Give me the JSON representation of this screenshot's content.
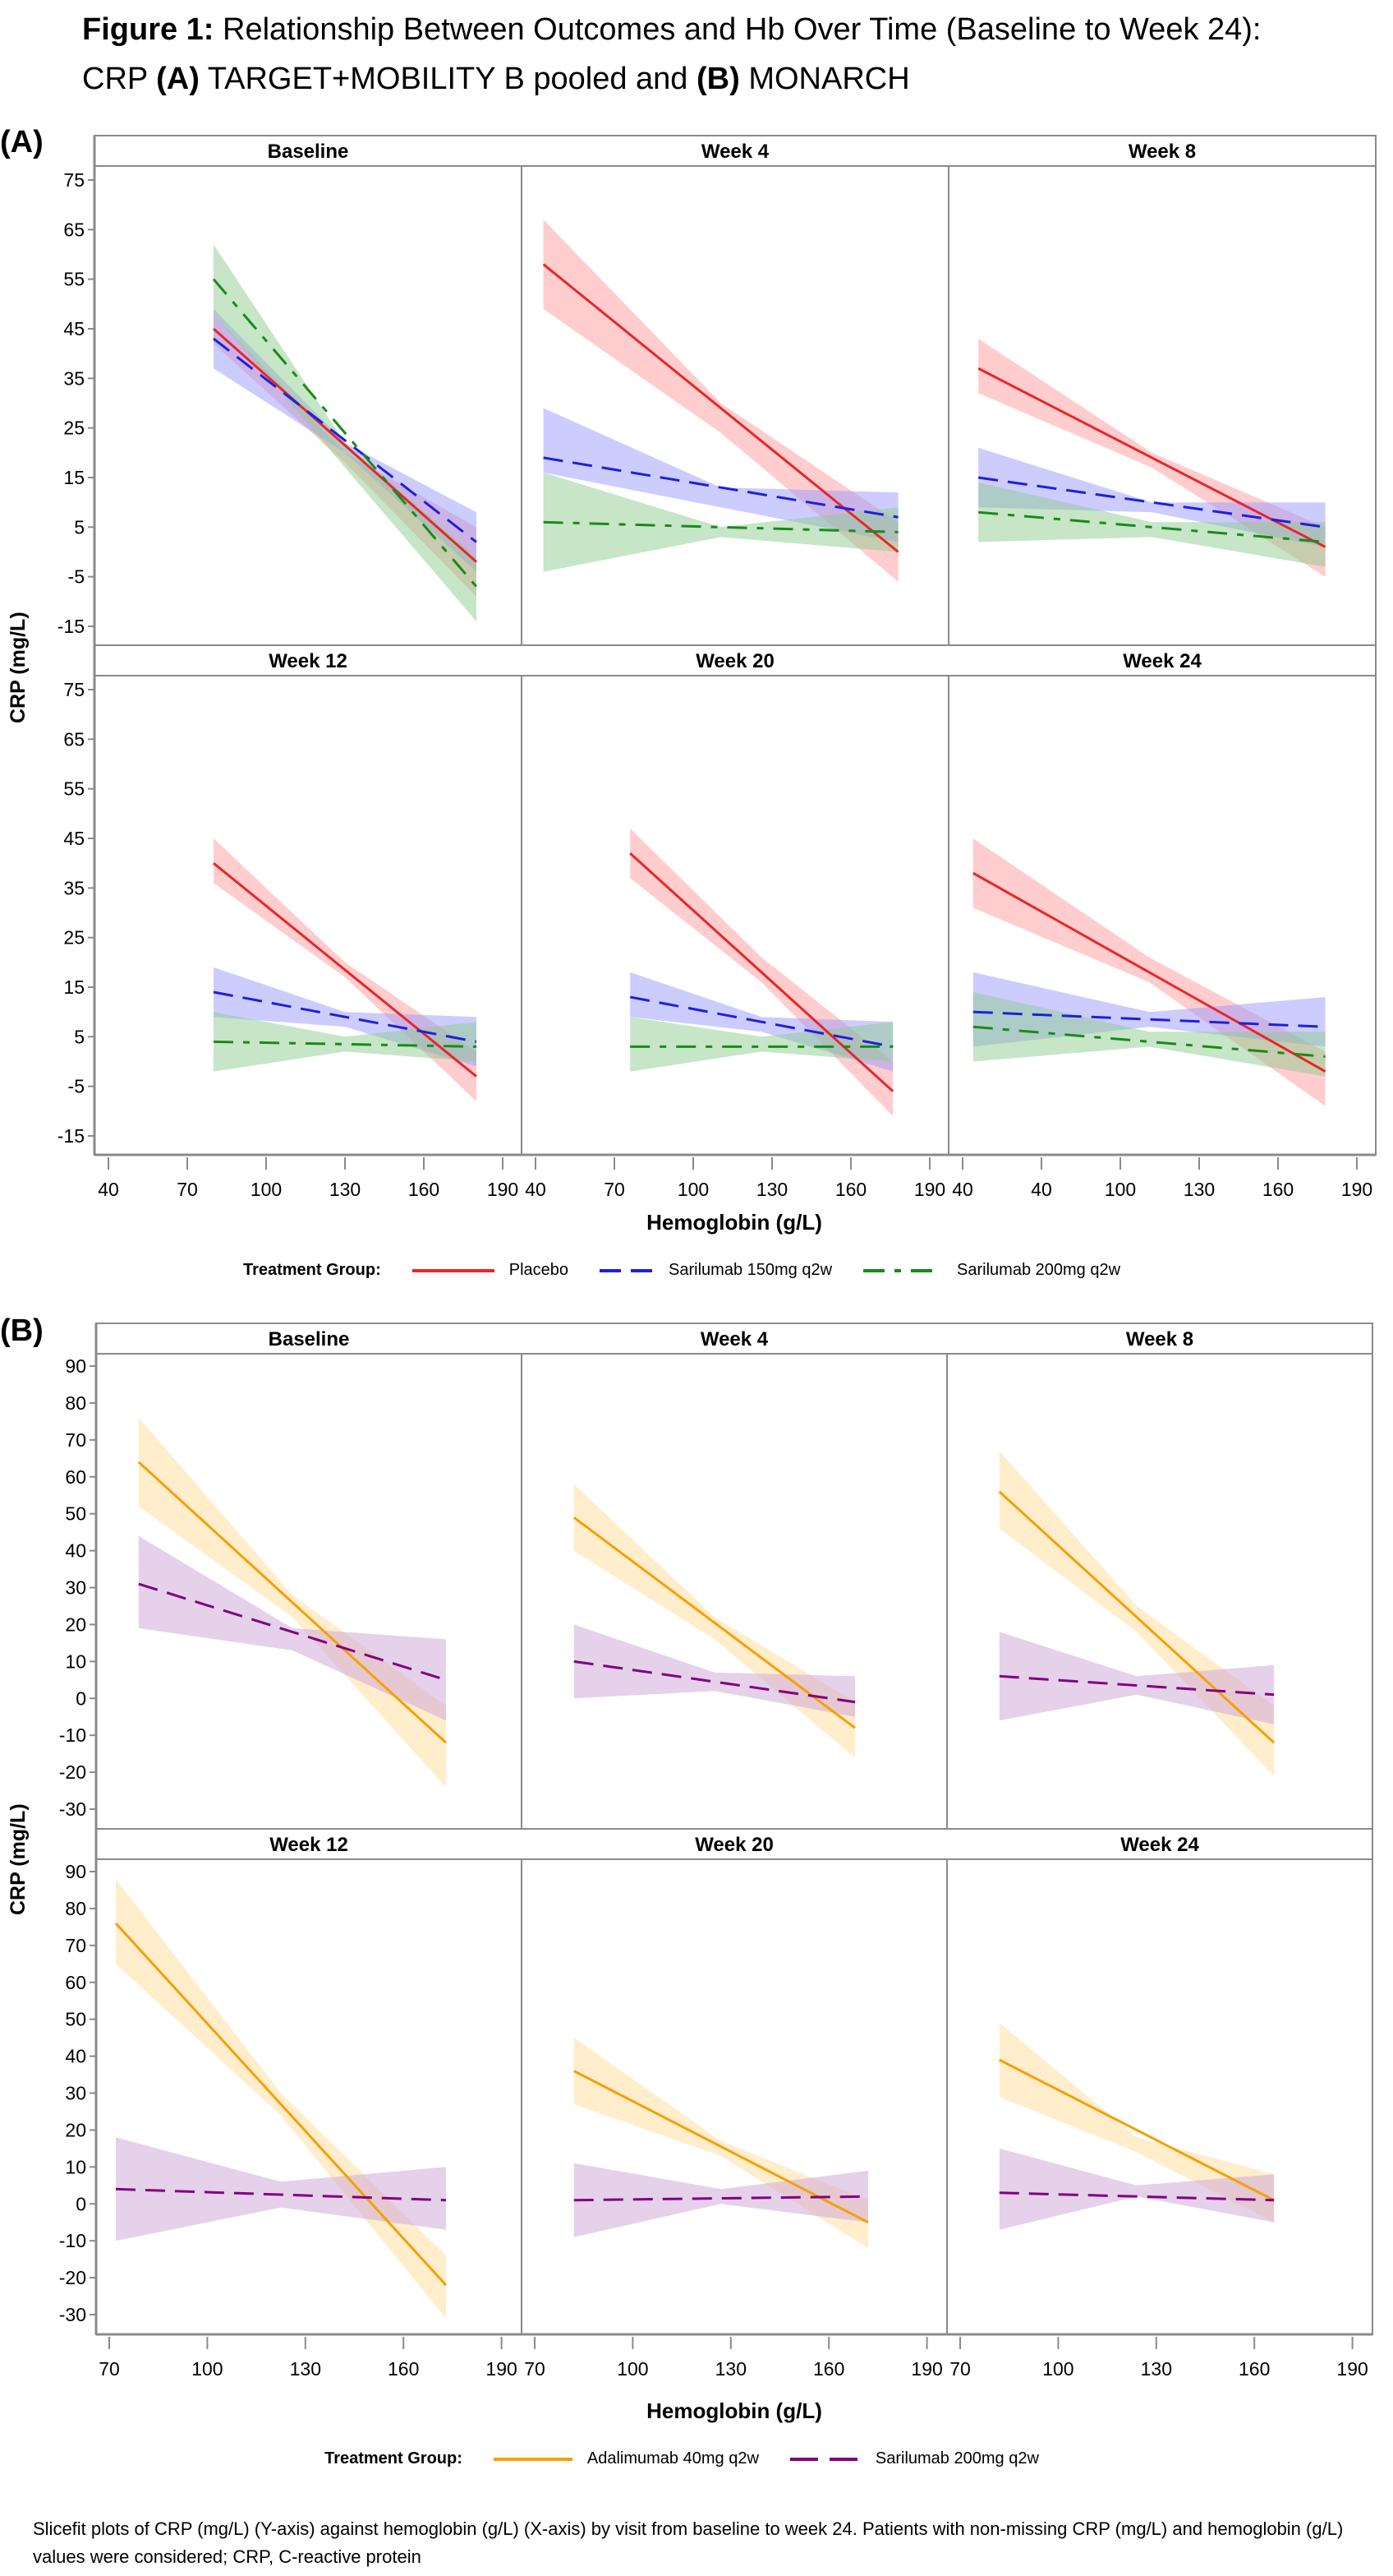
{
  "figure": {
    "title_prefix": "Figure 1:",
    "title_main": " Relationship Between Outcomes and Hb Over Time (Baseline to Week 24):",
    "title_line2_a": "CRP ",
    "title_label_a": "(A)",
    "title_line2_b": " TARGET+MOBILITY B pooled and ",
    "title_label_b": "(B)",
    "title_line2_c": " MONARCH",
    "footnote": "Slicefit plots of CRP (mg/L) (Y-axis) against hemoglobin (g/L) (X-axis) by visit from baseline to week 24. Patients with non-missing CRP (mg/L) and hemoglobin (g/L) values were considered; CRP, C-reactive protein"
  },
  "chart_data": [
    {
      "id": "A",
      "panel_label": "(A)",
      "type": "line",
      "subtype": "slicefit panel plot with confidence bands",
      "ylabel": "CRP (mg/L)",
      "xlabel": "Hemoglobin (g/L)",
      "yticks": [
        75,
        65,
        55,
        45,
        35,
        25,
        15,
        5,
        -5,
        -15
      ],
      "ylim": [
        -15,
        75
      ],
      "xlim": [
        40,
        190
      ],
      "xtick_labels_by_column": [
        [
          "40",
          "70",
          "100",
          "130",
          "160",
          "190"
        ],
        [
          "40",
          "70",
          "100",
          "130",
          "160",
          "190"
        ],
        [
          "40",
          "40",
          "100",
          "130",
          "160",
          "190"
        ]
      ],
      "legend_title": "Treatment Group:",
      "legend_position": "bottom",
      "series_styles": [
        {
          "name": "Placebo",
          "color": "#e8262a",
          "band_color": "#ff9b9b",
          "dash": "solid"
        },
        {
          "name": "Sarilumab 150mg q2w",
          "color": "#1f1fdc",
          "band_color": "#9a9aff",
          "dash": "dash"
        },
        {
          "name": "Sarilumab 200mg q2w",
          "color": "#1a8a1a",
          "band_color": "#8fcc8f",
          "dash": "dashdot"
        }
      ],
      "panels": [
        {
          "title": "Baseline",
          "series": [
            {
              "name": "Placebo",
              "x": [
                80,
                180
              ],
              "y": [
                45,
                -2
              ],
              "upper": [
                48,
                20,
                5
              ],
              "lower": [
                42,
                18,
                -9
              ]
            },
            {
              "name": "Sarilumab 150mg q2w",
              "x": [
                80,
                180
              ],
              "y": [
                43,
                2
              ],
              "upper": [
                49,
                22,
                8
              ],
              "lower": [
                37,
                20,
                -4
              ]
            },
            {
              "name": "Sarilumab 200mg q2w",
              "x": [
                80,
                180
              ],
              "y": [
                55,
                -7
              ],
              "upper": [
                62,
                22,
                -1
              ],
              "lower": [
                48,
                17,
                -14
              ]
            }
          ]
        },
        {
          "title": "Week 4",
          "series": [
            {
              "name": "Placebo",
              "x": [
                43,
                178
              ],
              "y": [
                58,
                0
              ],
              "upper": [
                67,
                30,
                6
              ],
              "lower": [
                49,
                24,
                -6
              ]
            },
            {
              "name": "Sarilumab 150mg q2w",
              "x": [
                43,
                178
              ],
              "y": [
                19,
                7
              ],
              "upper": [
                29,
                13,
                12
              ],
              "lower": [
                16,
                9,
                2
              ]
            },
            {
              "name": "Sarilumab 200mg q2w",
              "x": [
                43,
                178
              ],
              "y": [
                6,
                4
              ],
              "upper": [
                16,
                5,
                9
              ],
              "lower": [
                -4,
                3,
                0
              ]
            }
          ]
        },
        {
          "title": "Week 8",
          "series": [
            {
              "name": "Placebo",
              "x": [
                46,
                178
              ],
              "y": [
                37,
                1
              ],
              "upper": [
                43,
                20,
                5
              ],
              "lower": [
                32,
                17,
                -5
              ]
            },
            {
              "name": "Sarilumab 150mg q2w",
              "x": [
                46,
                178
              ],
              "y": [
                15,
                5
              ],
              "upper": [
                21,
                10,
                10
              ],
              "lower": [
                9,
                8,
                1
              ]
            },
            {
              "name": "Sarilumab 200mg q2w",
              "x": [
                46,
                178
              ],
              "y": [
                8,
                2
              ],
              "upper": [
                14,
                6,
                6
              ],
              "lower": [
                2,
                3,
                -3
              ]
            }
          ]
        },
        {
          "title": "Week 12",
          "series": [
            {
              "name": "Placebo",
              "x": [
                80,
                180
              ],
              "y": [
                40,
                -3
              ],
              "upper": [
                45,
                20,
                2
              ],
              "lower": [
                36,
                17,
                -8
              ]
            },
            {
              "name": "Sarilumab 150mg q2w",
              "x": [
                80,
                180
              ],
              "y": [
                14,
                4
              ],
              "upper": [
                19,
                10,
                9
              ],
              "lower": [
                9,
                7,
                -1
              ]
            },
            {
              "name": "Sarilumab 200mg q2w",
              "x": [
                80,
                180
              ],
              "y": [
                4,
                3
              ],
              "upper": [
                10,
                5,
                8
              ],
              "lower": [
                -2,
                2,
                0
              ]
            }
          ]
        },
        {
          "title": "Week 20",
          "series": [
            {
              "name": "Placebo",
              "x": [
                76,
                176
              ],
              "y": [
                42,
                -6
              ],
              "upper": [
                47,
                21,
                0
              ],
              "lower": [
                37,
                16,
                -11
              ]
            },
            {
              "name": "Sarilumab 150mg q2w",
              "x": [
                76,
                176
              ],
              "y": [
                13,
                3
              ],
              "upper": [
                18,
                9,
                8
              ],
              "lower": [
                9,
                6,
                -2
              ]
            },
            {
              "name": "Sarilumab 200mg q2w",
              "x": [
                76,
                176
              ],
              "y": [
                3,
                3
              ],
              "upper": [
                9,
                5,
                8
              ],
              "lower": [
                -2,
                2,
                0
              ]
            }
          ]
        },
        {
          "title": "Week 24",
          "series": [
            {
              "name": "Placebo",
              "x": [
                44,
                178
              ],
              "y": [
                38,
                -2
              ],
              "upper": [
                45,
                21,
                2
              ],
              "lower": [
                31,
                16,
                -9
              ]
            },
            {
              "name": "Sarilumab 150mg q2w",
              "x": [
                44,
                178
              ],
              "y": [
                10,
                7
              ],
              "upper": [
                18,
                10,
                13
              ],
              "lower": [
                3,
                7,
                3
              ]
            },
            {
              "name": "Sarilumab 200mg q2w",
              "x": [
                44,
                178
              ],
              "y": [
                7,
                1
              ],
              "upper": [
                14,
                6,
                6
              ],
              "lower": [
                0,
                3,
                -3
              ]
            }
          ]
        }
      ]
    },
    {
      "id": "B",
      "panel_label": "(B)",
      "type": "line",
      "subtype": "slicefit panel plot with confidence bands",
      "ylabel": "CRP (mg/L)",
      "xlabel": "Hemoglobin (g/L)",
      "yticks": [
        90,
        80,
        70,
        60,
        50,
        40,
        30,
        20,
        10,
        0,
        -10,
        -20,
        -30
      ],
      "ylim": [
        -30,
        90
      ],
      "xlim": [
        70,
        190
      ],
      "xtick_labels_by_column": [
        [
          "70",
          "100",
          "130",
          "160",
          "190"
        ],
        [
          "70",
          "100",
          "130",
          "160",
          "190"
        ],
        [
          "70",
          "100",
          "130",
          "160",
          "190"
        ]
      ],
      "legend_title": "Treatment Group:",
      "legend_position": "bottom",
      "series_styles": [
        {
          "name": "Adalimumab 40mg q2w",
          "color": "#f5a000",
          "band_color": "#ffdc9a",
          "dash": "solid"
        },
        {
          "name": "Sarilumab 200mg q2w",
          "color": "#800080",
          "band_color": "#cca3d6",
          "dash": "dash"
        }
      ],
      "panels": [
        {
          "title": "Baseline",
          "series": [
            {
              "name": "Adalimumab 40mg q2w",
              "x": [
                79,
                173
              ],
              "y": [
                64,
                -12
              ],
              "upper": [
                76,
                28,
                -2
              ],
              "lower": [
                52,
                22,
                -24
              ]
            },
            {
              "name": "Sarilumab 200mg q2w",
              "x": [
                79,
                173
              ],
              "y": [
                31,
                5
              ],
              "upper": [
                44,
                19,
                16
              ],
              "lower": [
                19,
                13,
                -6
              ]
            }
          ]
        },
        {
          "title": "Week 4",
          "series": [
            {
              "name": "Adalimumab 40mg q2w",
              "x": [
                82,
                168
              ],
              "y": [
                49,
                -8
              ],
              "upper": [
                58,
                22,
                -1
              ],
              "lower": [
                40,
                16,
                -16
              ]
            },
            {
              "name": "Sarilumab 200mg q2w",
              "x": [
                82,
                168
              ],
              "y": [
                10,
                -1
              ],
              "upper": [
                20,
                7,
                6
              ],
              "lower": [
                0,
                2,
                -5
              ]
            }
          ]
        },
        {
          "title": "Week 8",
          "series": [
            {
              "name": "Adalimumab 40mg q2w",
              "x": [
                82,
                166
              ],
              "y": [
                56,
                -12
              ],
              "upper": [
                67,
                25,
                -2
              ],
              "lower": [
                46,
                18,
                -21
              ]
            },
            {
              "name": "Sarilumab 200mg q2w",
              "x": [
                82,
                166
              ],
              "y": [
                6,
                1
              ],
              "upper": [
                18,
                6,
                9
              ],
              "lower": [
                -6,
                1,
                -7
              ]
            }
          ]
        },
        {
          "title": "Week 12",
          "series": [
            {
              "name": "Adalimumab 40mg q2w",
              "x": [
                72,
                173
              ],
              "y": [
                76,
                -22
              ],
              "upper": [
                88,
                30,
                -14
              ],
              "lower": [
                65,
                24,
                -31
              ]
            },
            {
              "name": "Sarilumab 200mg q2w",
              "x": [
                72,
                173
              ],
              "y": [
                4,
                1
              ],
              "upper": [
                18,
                6,
                10
              ],
              "lower": [
                -10,
                -1,
                -7
              ]
            }
          ]
        },
        {
          "title": "Week 20",
          "series": [
            {
              "name": "Adalimumab 40mg q2w",
              "x": [
                82,
                172
              ],
              "y": [
                36,
                -5
              ],
              "upper": [
                45,
                17,
                1
              ],
              "lower": [
                27,
                13,
                -12
              ]
            },
            {
              "name": "Sarilumab 200mg q2w",
              "x": [
                82,
                172
              ],
              "y": [
                1,
                2
              ],
              "upper": [
                11,
                4,
                9
              ],
              "lower": [
                -9,
                0,
                -5
              ]
            }
          ]
        },
        {
          "title": "Week 24",
          "series": [
            {
              "name": "Adalimumab 40mg q2w",
              "x": [
                82,
                166
              ],
              "y": [
                39,
                1
              ],
              "upper": [
                49,
                18,
                8
              ],
              "lower": [
                29,
                14,
                -5
              ]
            },
            {
              "name": "Sarilumab 200mg q2w",
              "x": [
                82,
                166
              ],
              "y": [
                3,
                1
              ],
              "upper": [
                15,
                5,
                8
              ],
              "lower": [
                -7,
                2,
                -5
              ]
            }
          ]
        }
      ]
    }
  ]
}
